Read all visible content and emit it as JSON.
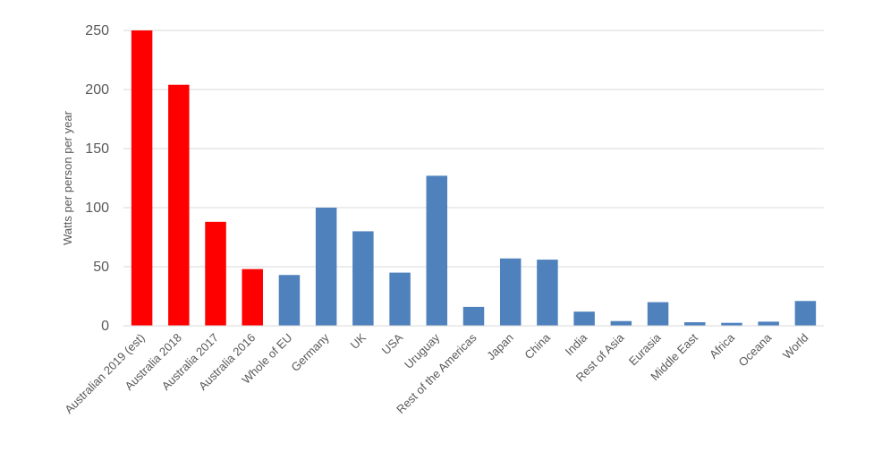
{
  "chart_data": {
    "type": "bar",
    "title": "",
    "xlabel": "",
    "ylabel": "Watts per person per year",
    "ylim": [
      0,
      250
    ],
    "yticks": [
      0,
      50,
      100,
      150,
      200,
      250
    ],
    "grid": true,
    "legend": "none",
    "categories": [
      "Australian 2019 (est)",
      "Australia 2018",
      "Australia 2017",
      "Australia 2016",
      "Whole of EU",
      "Germany",
      "UK",
      "USA",
      "Uruguay",
      "Rest of the Americas",
      "Japan",
      "China",
      "India",
      "Rest of Asia",
      "Eurasia",
      "Middle East",
      "Africa",
      "Oceana",
      "World"
    ],
    "values": [
      250,
      204,
      88,
      48,
      43,
      100,
      80,
      45,
      127,
      16,
      57,
      56,
      12,
      4,
      20,
      3,
      2.5,
      3.5,
      21
    ],
    "bar_colors": [
      "#ff0000",
      "#ff0000",
      "#ff0000",
      "#ff0000",
      "#4f81bd",
      "#4f81bd",
      "#4f81bd",
      "#4f81bd",
      "#4f81bd",
      "#4f81bd",
      "#4f81bd",
      "#4f81bd",
      "#4f81bd",
      "#4f81bd",
      "#4f81bd",
      "#4f81bd",
      "#4f81bd",
      "#4f81bd",
      "#4f81bd"
    ],
    "colors": {
      "australia": "#ff0000",
      "other": "#4f81bd",
      "grid": "#d9d9d9",
      "text": "#595959"
    }
  }
}
